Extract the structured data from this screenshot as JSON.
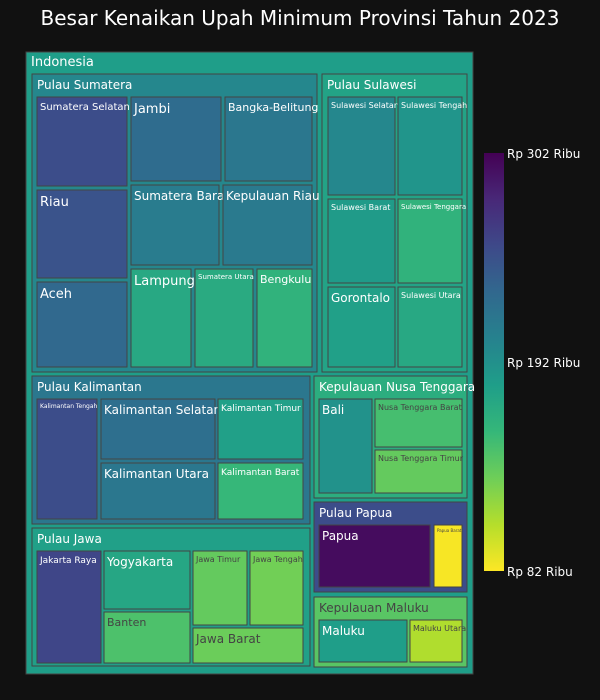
{
  "title": "Besar Kenaikan Upah Minimum Provinsi Tahun 2023",
  "chart_data": {
    "type": "treemap",
    "title": "Besar Kenaikan Upah Minimum Provinsi Tahun 2023",
    "colorscale": "viridis_reversed",
    "color_range": [
      82,
      302
    ],
    "colorbar_ticks": [
      "Rp 302 Ribu",
      "Rp 192 Ribu",
      "Rp 82 Ribu"
    ],
    "root": {
      "label": "Indonesia",
      "value": 180
    },
    "groups": [
      {
        "label": "Pulau Sumatera",
        "value": 200,
        "children": [
          {
            "label": "Sumatera Selatan",
            "value": 250
          },
          {
            "label": "Jambi",
            "value": 225
          },
          {
            "label": "Bangka-Belitung",
            "value": 215
          },
          {
            "label": "Riau",
            "value": 245
          },
          {
            "label": "Sumatera Barat",
            "value": 210
          },
          {
            "label": "Kepulauan Riau",
            "value": 212
          },
          {
            "label": "Aceh",
            "value": 228
          },
          {
            "label": "Lampung",
            "value": 170
          },
          {
            "label": "Sumatera Utara",
            "value": 168
          },
          {
            "label": "Bengkulu",
            "value": 160
          }
        ]
      },
      {
        "label": "Pulau Sulawesi",
        "value": 175,
        "children": [
          {
            "label": "Sulawesi Selatan",
            "value": 200
          },
          {
            "label": "Sulawesi Tengah",
            "value": 188
          },
          {
            "label": "Sulawesi Barat",
            "value": 182
          },
          {
            "label": "Sulawesi Tenggara",
            "value": 160
          },
          {
            "label": "Gorontalo",
            "value": 178
          },
          {
            "label": "Sulawesi Utara",
            "value": 170
          }
        ]
      },
      {
        "label": "Pulau Kalimantan",
        "value": 215,
        "children": [
          {
            "label": "Kalimantan Tengah",
            "value": 250
          },
          {
            "label": "Kalimantan Selatan",
            "value": 222
          },
          {
            "label": "Kalimantan Timur",
            "value": 178
          },
          {
            "label": "Kalimantan Utara",
            "value": 215
          },
          {
            "label": "Kalimantan Barat",
            "value": 155
          }
        ]
      },
      {
        "label": "Kepulauan Nusa Tenggara",
        "value": 165,
        "children": [
          {
            "label": "Bali",
            "value": 190
          },
          {
            "label": "Nusa Tenggara Barat",
            "value": 148
          },
          {
            "label": "Nusa Tenggara Timur",
            "value": 135
          }
        ]
      },
      {
        "label": "Pulau Jawa",
        "value": 178,
        "children": [
          {
            "label": "Jakarta Raya",
            "value": 255
          },
          {
            "label": "Yogyakarta",
            "value": 172
          },
          {
            "label": "Jawa Timur",
            "value": 135
          },
          {
            "label": "Jawa Tengah",
            "value": 130
          },
          {
            "label": "Banten",
            "value": 145
          },
          {
            "label": "Jawa Barat",
            "value": 132
          }
        ]
      },
      {
        "label": "Pulau Papua",
        "value": 250,
        "children": [
          {
            "label": "Papua",
            "value": 295
          },
          {
            "label": "Papua Barat",
            "value": 84
          }
        ]
      },
      {
        "label": "Kepulauan Maluku",
        "value": 140,
        "children": [
          {
            "label": "Maluku",
            "value": 180
          },
          {
            "label": "Maluku Utara",
            "value": 108
          }
        ]
      }
    ]
  }
}
